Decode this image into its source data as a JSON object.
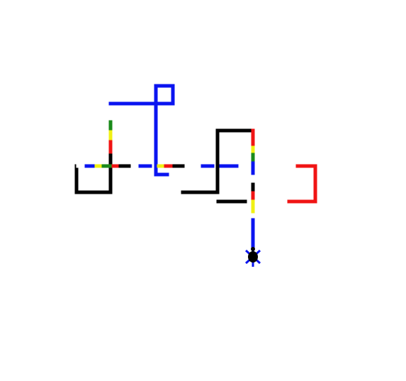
{
  "scene": {
    "background": "#ffffff",
    "palette": {
      "blue": "#0a14f0",
      "red": "#f01414",
      "yellow": "#f0f014",
      "green": "#1a8a1a",
      "black": "#000000",
      "white": "#ffffff"
    },
    "turtle_icon": "turtle-icon"
  }
}
